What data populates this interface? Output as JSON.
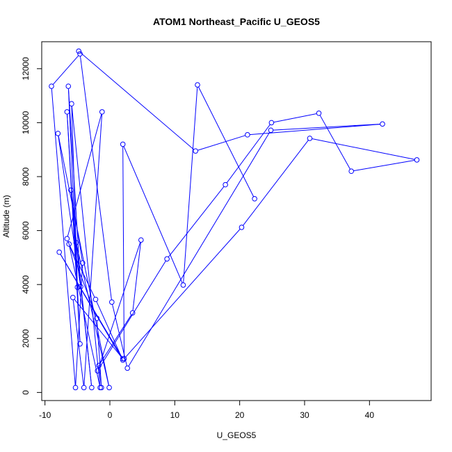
{
  "chart_data": {
    "type": "line",
    "title": "ATOM1 Northeast_Pacific U_GEOS5",
    "xlabel": "U_GEOS5",
    "ylabel": "Altitude (m)",
    "xlim": [
      -10.5,
      49.5
    ],
    "ylim": [
      -300,
      13000
    ],
    "x_ticks": [
      -10,
      0,
      10,
      20,
      30,
      40
    ],
    "y_ticks": [
      0,
      2000,
      4000,
      6000,
      8000,
      10000,
      12000
    ],
    "x_tick_labels": [
      "-10",
      "0",
      "10",
      "20",
      "30",
      "40"
    ],
    "y_tick_labels": [
      "0",
      "2000",
      "4000",
      "6000",
      "8000",
      "10000",
      "12000"
    ],
    "grid": false,
    "legend": "none",
    "series": [
      {
        "color": "#0000ff",
        "marker": "open-circle",
        "points": [
          {
            "x": -4.8,
            "y": 12650
          },
          {
            "x": 13.2,
            "y": 8950
          },
          {
            "x": 21.2,
            "y": 9550
          },
          {
            "x": 42.0,
            "y": 9950
          },
          {
            "x": 24.8,
            "y": 9720
          },
          {
            "x": 2.7,
            "y": 900
          },
          {
            "x": 0.3,
            "y": 3350
          },
          {
            "x": -4.6,
            "y": 12550
          },
          {
            "x": -9.0,
            "y": 11350
          },
          {
            "x": -5.3,
            "y": 180
          },
          {
            "x": -4.2,
            "y": 4800
          },
          {
            "x": -6.0,
            "y": 7500
          },
          {
            "x": -2.8,
            "y": 180
          },
          {
            "x": -5.2,
            "y": 5550
          },
          {
            "x": -0.1,
            "y": 180
          },
          {
            "x": -8.0,
            "y": 9600
          },
          {
            "x": -4.5,
            "y": 3920
          },
          {
            "x": -6.4,
            "y": 11350
          },
          {
            "x": -4.6,
            "y": 1800
          },
          {
            "x": -6.6,
            "y": 10400
          },
          {
            "x": -5.0,
            "y": 3900
          },
          {
            "x": -5.9,
            "y": 10700
          },
          {
            "x": -1.5,
            "y": 180
          },
          {
            "x": -6.3,
            "y": 5500
          },
          {
            "x": -2.2,
            "y": 3450
          },
          {
            "x": 2.0,
            "y": 1200
          },
          {
            "x": -7.8,
            "y": 5200
          },
          {
            "x": 2.0,
            "y": 1250
          },
          {
            "x": -5.7,
            "y": 3520
          },
          {
            "x": -4.0,
            "y": 180
          },
          {
            "x": -1.2,
            "y": 10400
          },
          {
            "x": -6.6,
            "y": 5700
          },
          {
            "x": -2.0,
            "y": 2750
          },
          {
            "x": -1.3,
            "y": 180
          },
          {
            "x": -1.7,
            "y": 1000
          },
          {
            "x": 3.5,
            "y": 2950
          },
          {
            "x": 4.8,
            "y": 5650
          },
          {
            "x": -1.9,
            "y": 800
          },
          {
            "x": 8.8,
            "y": 4950
          },
          {
            "x": 17.8,
            "y": 7700
          },
          {
            "x": 24.9,
            "y": 10000
          },
          {
            "x": 32.2,
            "y": 10350
          },
          {
            "x": 37.2,
            "y": 8200
          },
          {
            "x": 47.3,
            "y": 8620
          },
          {
            "x": 30.8,
            "y": 9420
          },
          {
            "x": 20.3,
            "y": 6120
          },
          {
            "x": 2.2,
            "y": 1250
          },
          {
            "x": 2.0,
            "y": 9200
          },
          {
            "x": 11.3,
            "y": 3980
          },
          {
            "x": 13.5,
            "y": 11400
          },
          {
            "x": 22.3,
            "y": 7180
          }
        ]
      }
    ]
  }
}
